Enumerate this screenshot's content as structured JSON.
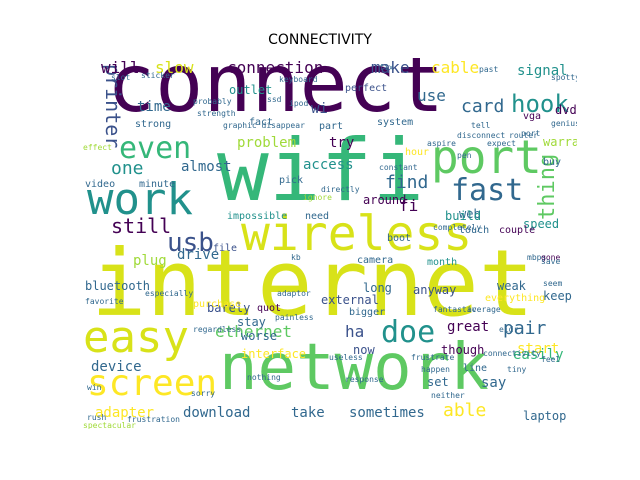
{
  "title": "CONNECTIVITY",
  "palette": {
    "purple": "#440154",
    "indigo": "#3b528b",
    "blue": "#31688e",
    "teal": "#21918c",
    "green": "#35b779",
    "lime": "#5ec962",
    "yellowgreen": "#a0da39",
    "yellow": "#d8e219",
    "gold": "#fde725"
  },
  "words": [
    {
      "text": "connect",
      "color": "#440154"
    },
    {
      "text": "wifi",
      "color": "#35b779"
    },
    {
      "text": "internet",
      "color": "#d8e219"
    },
    {
      "text": "network",
      "color": "#5ec962"
    },
    {
      "text": "wireless",
      "color": "#d8e219"
    },
    {
      "text": "port",
      "color": "#5ec962"
    },
    {
      "text": "work",
      "color": "#21918c"
    },
    {
      "text": "easy",
      "color": "#d8e219"
    },
    {
      "text": "screen",
      "color": "#fde725"
    },
    {
      "text": "even",
      "color": "#35b779"
    },
    {
      "text": "fast",
      "color": "#31688e"
    },
    {
      "text": "usb",
      "color": "#3b528b"
    },
    {
      "text": "hook",
      "color": "#21918c"
    },
    {
      "text": "doe",
      "color": "#21918c"
    },
    {
      "text": "connection",
      "color": "#440154"
    },
    {
      "text": "printer",
      "color": "#3b528b"
    },
    {
      "text": "ethernet",
      "color": "#5ec962"
    },
    {
      "text": "still",
      "color": "#440154"
    },
    {
      "text": "find",
      "color": "#31688e"
    },
    {
      "text": "card",
      "color": "#31688e"
    },
    {
      "text": "make",
      "color": "#3b528b"
    },
    {
      "text": "cable",
      "color": "#fde725"
    },
    {
      "text": "slow",
      "color": "#d8e219"
    },
    {
      "text": "will",
      "color": "#440154"
    },
    {
      "text": "one",
      "color": "#21918c"
    },
    {
      "text": "almost",
      "color": "#31688e"
    },
    {
      "text": "problem",
      "color": "#a0da39"
    },
    {
      "text": "try",
      "color": "#440154"
    },
    {
      "text": "fi",
      "color": "#440154"
    },
    {
      "text": "drive",
      "color": "#31688e"
    },
    {
      "text": "thing",
      "color": "#5ec962"
    },
    {
      "text": "signal",
      "color": "#21918c"
    },
    {
      "text": "use",
      "color": "#31688e"
    },
    {
      "text": "time",
      "color": "#31688e"
    },
    {
      "text": "adapter",
      "color": "#fde725"
    },
    {
      "text": "download",
      "color": "#31688e"
    },
    {
      "text": "take",
      "color": "#31688e"
    },
    {
      "text": "sometimes",
      "color": "#31688e"
    },
    {
      "text": "able",
      "color": "#fde725"
    },
    {
      "text": "great",
      "color": "#440154"
    },
    {
      "text": "pair",
      "color": "#31688e"
    },
    {
      "text": "device",
      "color": "#31688e"
    },
    {
      "text": "interface",
      "color": "#fde725"
    },
    {
      "text": "ha",
      "color": "#3b528b"
    },
    {
      "text": "long",
      "color": "#31688e"
    },
    {
      "text": "now",
      "color": "#3b528b"
    },
    {
      "text": "start",
      "color": "#fde725"
    },
    {
      "text": "say",
      "color": "#31688e"
    },
    {
      "text": "laptop",
      "color": "#31688e"
    },
    {
      "text": "stay",
      "color": "#31688e"
    },
    {
      "text": "worse",
      "color": "#31688e"
    },
    {
      "text": "plug",
      "color": "#a0da39"
    },
    {
      "text": "access",
      "color": "#21918c"
    },
    {
      "text": "external",
      "color": "#3b528b"
    },
    {
      "text": "anyway",
      "color": "#3b528b"
    },
    {
      "text": "barely",
      "color": "#3b528b"
    },
    {
      "text": "bluetooth",
      "color": "#31688e"
    },
    {
      "text": "around",
      "color": "#440154"
    },
    {
      "text": "web",
      "color": "#31688e"
    },
    {
      "text": "weak",
      "color": "#31688e"
    },
    {
      "text": "keep",
      "color": "#31688e"
    },
    {
      "text": "dvd",
      "color": "#440154"
    },
    {
      "text": "speed",
      "color": "#21918c"
    },
    {
      "text": "warranty",
      "color": "#a0da39"
    },
    {
      "text": "easily",
      "color": "#35b779"
    },
    {
      "text": "though",
      "color": "#440154"
    },
    {
      "text": "bigger",
      "color": "#31688e"
    },
    {
      "text": "impossible",
      "color": "#21918c"
    },
    {
      "text": "need",
      "color": "#31688e"
    },
    {
      "text": "build",
      "color": "#21918c"
    },
    {
      "text": "outlet",
      "color": "#21918c"
    },
    {
      "text": "hour",
      "color": "#fde725"
    },
    {
      "text": "wi",
      "color": "#3b528b"
    },
    {
      "text": "perfect",
      "color": "#3b528b"
    },
    {
      "text": "set",
      "color": "#31688e"
    },
    {
      "text": "line",
      "color": "#31688e"
    },
    {
      "text": "month",
      "color": "#21918c"
    },
    {
      "text": "camera",
      "color": "#31688e"
    },
    {
      "text": "boot",
      "color": "#31688e"
    },
    {
      "text": "video",
      "color": "#31688e"
    },
    {
      "text": "minute",
      "color": "#31688e"
    },
    {
      "text": "strong",
      "color": "#31688e"
    },
    {
      "text": "purchase",
      "color": "#fde725"
    },
    {
      "text": "quot",
      "color": "#440154"
    },
    {
      "text": "vga",
      "color": "#440154"
    },
    {
      "text": "buy",
      "color": "#31688e"
    },
    {
      "text": "touch",
      "color": "#31688e"
    },
    {
      "text": "couple",
      "color": "#440154"
    },
    {
      "text": "file",
      "color": "#3b528b"
    },
    {
      "text": "pick",
      "color": "#31688e"
    },
    {
      "text": "fact",
      "color": "#31688e"
    },
    {
      "text": "part",
      "color": "#31688e"
    },
    {
      "text": "system",
      "color": "#31688e"
    },
    {
      "text": "constant",
      "color": "#31688e"
    },
    {
      "text": "completely",
      "color": "#31688e"
    },
    {
      "text": "everything",
      "color": "#fde725"
    },
    {
      "text": "response",
      "color": "#31688e"
    },
    {
      "text": "useless",
      "color": "#31688e"
    },
    {
      "text": "frustrate",
      "color": "#31688e"
    },
    {
      "text": "regardless",
      "color": "#31688e"
    },
    {
      "text": "win",
      "color": "#31688e"
    },
    {
      "text": "adaptor",
      "color": "#31688e"
    },
    {
      "text": "painless",
      "color": "#31688e"
    },
    {
      "text": "keyboard",
      "color": "#31688e"
    },
    {
      "text": "strength",
      "color": "#31688e"
    },
    {
      "text": "probably",
      "color": "#31688e"
    },
    {
      "text": "graphic disappear",
      "color": "#31688e"
    },
    {
      "text": "fantastic",
      "color": "#31688e"
    },
    {
      "text": "average",
      "color": "#31688e"
    },
    {
      "text": "disconnect",
      "color": "#31688e"
    },
    {
      "text": "mbps",
      "color": "#31688e"
    },
    {
      "text": "slot",
      "color": "#31688e"
    },
    {
      "text": "ipod",
      "color": "#31688e"
    },
    {
      "text": "ssd",
      "color": "#31688e"
    },
    {
      "text": "favorite",
      "color": "#31688e"
    },
    {
      "text": "ignore",
      "color": "#a0da39"
    },
    {
      "text": "directly",
      "color": "#31688e"
    },
    {
      "text": "especially",
      "color": "#31688e"
    },
    {
      "text": "nothing",
      "color": "#31688e"
    },
    {
      "text": "effect",
      "color": "#a0da39"
    },
    {
      "text": "happen",
      "color": "#31688e"
    },
    {
      "text": "gone",
      "color": "#440154"
    },
    {
      "text": "save",
      "color": "#31688e"
    },
    {
      "text": "seem",
      "color": "#31688e"
    },
    {
      "text": "eidr",
      "color": "#31688e"
    },
    {
      "text": "tiny",
      "color": "#31688e"
    },
    {
      "text": "feel",
      "color": "#31688e"
    },
    {
      "text": "rush",
      "color": "#31688e"
    },
    {
      "text": "sorry",
      "color": "#31688e"
    },
    {
      "text": "neither",
      "color": "#31688e"
    },
    {
      "text": "frustration",
      "color": "#31688e"
    },
    {
      "text": "spectacular",
      "color": "#a0da39"
    },
    {
      "text": "fix",
      "color": "#31688e"
    },
    {
      "text": "kb",
      "color": "#31688e"
    },
    {
      "text": "aspire",
      "color": "#31688e"
    },
    {
      "text": "expect",
      "color": "#31688e"
    },
    {
      "text": "router",
      "color": "#31688e"
    },
    {
      "text": "genius",
      "color": "#31688e"
    },
    {
      "text": "connectivity",
      "color": "#31688e"
    },
    {
      "text": "past",
      "color": "#31688e"
    },
    {
      "text": "port",
      "color": "#31688e"
    },
    {
      "text": "pen",
      "color": "#31688e"
    },
    {
      "text": "tell",
      "color": "#31688e"
    },
    {
      "text": "spotty",
      "color": "#31688e"
    },
    {
      "text": "sticker",
      "color": "#31688e"
    },
    {
      "text": "rarely",
      "color": "#31688e"
    }
  ]
}
